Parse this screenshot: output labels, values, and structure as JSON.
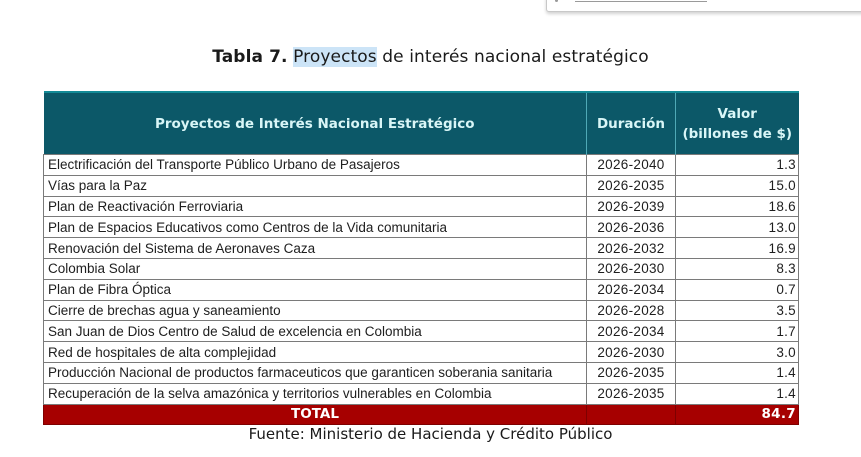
{
  "document": {
    "title_prefix": "Tabla 7.",
    "title_highlight": "Proyectos",
    "title_rest": " de interés nacional estratégico",
    "source": "Fuente: Ministerio de Hacienda y Crédito Público"
  },
  "colors": {
    "header_bg": "#0c5868",
    "header_text": "#d9f6f7",
    "total_bg": "#a60000",
    "highlight": "#cce4f7"
  },
  "table": {
    "headers": {
      "project": "Proyectos de Interés Nacional  Estratégico",
      "duration": "Duración",
      "value_line1": "Valor",
      "value_line2": "(billones de $)"
    },
    "rows": [
      {
        "project": "Electrificación del Transporte Público Urbano de Pasajeros",
        "duration": "2026-2040",
        "value": "1.3"
      },
      {
        "project": "Vías para la Paz",
        "duration": "2026-2035",
        "value": "15.0"
      },
      {
        "project": "Plan de Reactivación Ferroviaria",
        "duration": "2026-2039",
        "value": "18.6"
      },
      {
        "project": "Plan de Espacios Educativos como Centros de la Vida comunitaria",
        "duration": "2026-2036",
        "value": "13.0"
      },
      {
        "project": " Renovación del Sistema de Aeronaves Caza",
        "duration": "2026-2032",
        "value": "16.9"
      },
      {
        "project": " Colombia Solar",
        "duration": "2026-2030",
        "value": "8.3"
      },
      {
        "project": "Plan de Fibra Óptica",
        "duration": "2026-2034",
        "value": "0.7"
      },
      {
        "project": "Cierre de brechas agua y saneamiento",
        "duration": "2026-2028",
        "value": "3.5"
      },
      {
        "project": "San Juan de Dios Centro de Salud de excelencia en Colombia",
        "duration": "2026-2034",
        "value": "1.7"
      },
      {
        "project": "Red de hospitales de alta complejidad",
        "duration": "2026-2030",
        "value": "3.0"
      },
      {
        "project": "Producción Nacional de productos farmaceuticos que garanticen soberania sanitaria",
        "duration": "2026-2035",
        "value": "1.4"
      },
      {
        "project": "Recuperación de la selva amazónica y territorios vulnerables en Colombia",
        "duration": "2026-2035",
        "value": "1.4"
      }
    ],
    "total": {
      "label": "TOTAL",
      "duration": "",
      "value": "84.7"
    }
  }
}
